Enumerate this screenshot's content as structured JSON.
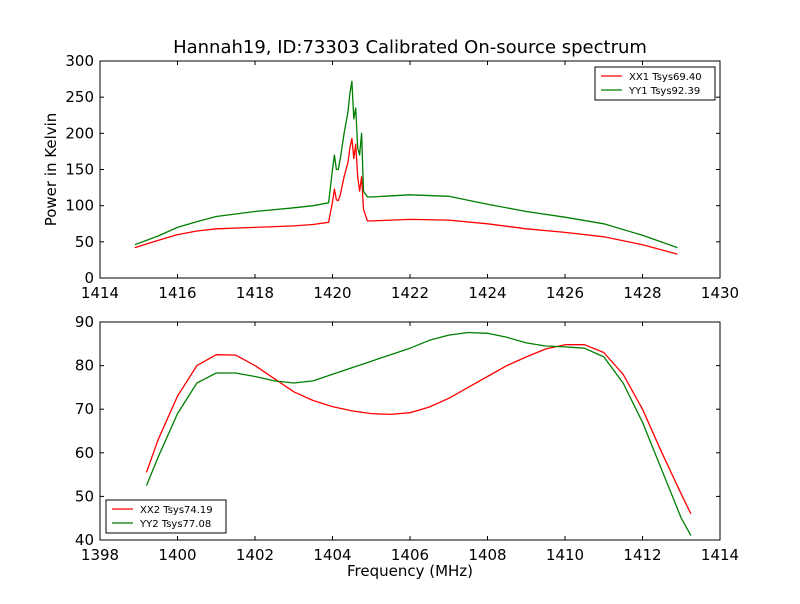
{
  "figure": {
    "title": "Hannah19, ID:73303 Calibrated On-source spectrum"
  },
  "chart_data": [
    {
      "type": "line",
      "title": "Hannah19, ID:73303 Calibrated On-source spectrum",
      "xlabel": "",
      "ylabel": "Power in Kelvin",
      "xlim": [
        1414,
        1430
      ],
      "ylim": [
        0,
        300
      ],
      "xticks": [
        1414,
        1416,
        1418,
        1420,
        1422,
        1424,
        1426,
        1428,
        1430
      ],
      "yticks": [
        0,
        50,
        100,
        150,
        200,
        250,
        300
      ],
      "grid": false,
      "legend": "top-right",
      "series": [
        {
          "name": "XX1 Tsys69.40",
          "color": "#ff0000",
          "x": [
            1414.9,
            1415.5,
            1416.0,
            1416.5,
            1417.0,
            1418.0,
            1419.0,
            1419.5,
            1419.9,
            1420.0,
            1420.05,
            1420.1,
            1420.15,
            1420.2,
            1420.3,
            1420.4,
            1420.45,
            1420.5,
            1420.55,
            1420.6,
            1420.65,
            1420.7,
            1420.75,
            1420.8,
            1420.9,
            1421.0,
            1422.0,
            1423.0,
            1424.0,
            1425.0,
            1426.0,
            1427.0,
            1428.0,
            1428.9
          ],
          "y": [
            42,
            52,
            60,
            65,
            68,
            70,
            72,
            74,
            77,
            105,
            123,
            108,
            107,
            115,
            140,
            160,
            180,
            193,
            165,
            185,
            140,
            120,
            140,
            95,
            79,
            79,
            81,
            80,
            75,
            68,
            63,
            57,
            46,
            33
          ]
        },
        {
          "name": "YY1 Tsys92.39",
          "color": "#007f00",
          "x": [
            1414.9,
            1415.5,
            1416.0,
            1416.5,
            1417.0,
            1418.0,
            1419.0,
            1419.5,
            1419.9,
            1420.0,
            1420.05,
            1420.1,
            1420.15,
            1420.2,
            1420.3,
            1420.4,
            1420.45,
            1420.5,
            1420.55,
            1420.6,
            1420.65,
            1420.7,
            1420.75,
            1420.8,
            1420.9,
            1421.0,
            1422.0,
            1423.0,
            1424.0,
            1425.0,
            1426.0,
            1427.0,
            1428.0,
            1428.9
          ],
          "y": [
            46,
            58,
            70,
            78,
            85,
            92,
            97,
            100,
            104,
            150,
            170,
            150,
            150,
            165,
            200,
            230,
            255,
            272,
            220,
            235,
            180,
            170,
            200,
            120,
            112,
            112,
            115,
            113,
            102,
            92,
            84,
            75,
            59,
            42
          ]
        }
      ]
    },
    {
      "type": "line",
      "title": "",
      "xlabel": "Frequency (MHz)",
      "ylabel": "",
      "xlim": [
        1398,
        1414
      ],
      "ylim": [
        40,
        90
      ],
      "xticks": [
        1398,
        1400,
        1402,
        1404,
        1406,
        1408,
        1410,
        1412,
        1414
      ],
      "yticks": [
        40,
        50,
        60,
        70,
        80,
        90
      ],
      "grid": false,
      "legend": "bottom-left",
      "series": [
        {
          "name": "XX2 Tsys74.19",
          "color": "#ff0000",
          "x": [
            1399.2,
            1399.5,
            1400.0,
            1400.5,
            1401.0,
            1401.5,
            1402.0,
            1402.5,
            1403.0,
            1403.5,
            1404.0,
            1404.5,
            1405.0,
            1405.5,
            1406.0,
            1406.5,
            1407.0,
            1407.5,
            1408.0,
            1408.5,
            1409.0,
            1409.5,
            1410.0,
            1410.5,
            1411.0,
            1411.5,
            1412.0,
            1412.5,
            1413.0,
            1413.25
          ],
          "y": [
            55.5,
            63,
            73,
            80,
            82.5,
            82.4,
            80,
            77,
            74,
            72,
            70.6,
            69.6,
            69,
            68.8,
            69.2,
            70.5,
            72.5,
            75,
            77.5,
            80,
            82,
            83.8,
            84.8,
            84.8,
            83,
            78,
            70,
            60,
            50.5,
            46
          ]
        },
        {
          "name": "YY2 Tsys77.08",
          "color": "#007f00",
          "x": [
            1399.2,
            1399.5,
            1400.0,
            1400.5,
            1401.0,
            1401.5,
            1402.0,
            1402.5,
            1403.0,
            1403.5,
            1404.0,
            1404.5,
            1405.0,
            1405.5,
            1406.0,
            1406.5,
            1407.0,
            1407.5,
            1408.0,
            1408.5,
            1409.0,
            1409.5,
            1410.0,
            1410.5,
            1411.0,
            1411.5,
            1412.0,
            1412.5,
            1413.0,
            1413.25
          ],
          "y": [
            52.5,
            59,
            69,
            76,
            78.3,
            78.3,
            77.5,
            76.5,
            76,
            76.5,
            78,
            79.5,
            81,
            82.5,
            84,
            85.8,
            87,
            87.6,
            87.4,
            86.5,
            85.2,
            84.5,
            84.3,
            84,
            82,
            76,
            67,
            56,
            45,
            41
          ]
        }
      ]
    }
  ]
}
